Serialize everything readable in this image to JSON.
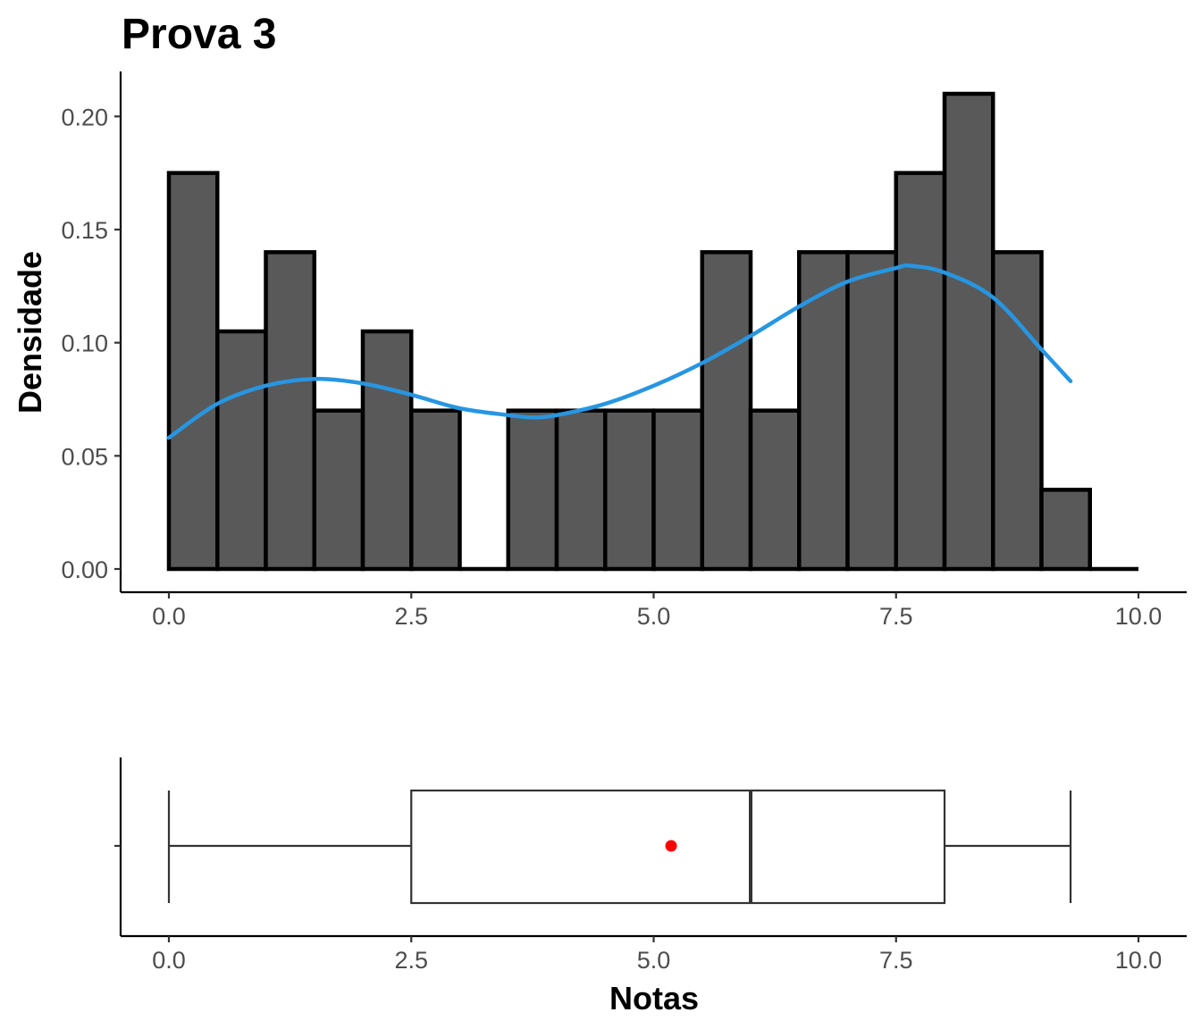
{
  "chart_data": [
    {
      "type": "bar",
      "subtype": "histogram-with-density",
      "title": "Prova 3",
      "xlabel": "",
      "ylabel": "Densidade",
      "xlim": [
        0,
        10
      ],
      "ylim": [
        0,
        0.21
      ],
      "x_ticks": [
        "0.0",
        "2.5",
        "5.0",
        "7.5",
        "10.0"
      ],
      "y_ticks": [
        "0.00",
        "0.05",
        "0.10",
        "0.15",
        "0.20"
      ],
      "bin_width": 0.5,
      "bins": [
        {
          "x0": 0.0,
          "x1": 0.5,
          "density": 0.175
        },
        {
          "x0": 0.5,
          "x1": 1.0,
          "density": 0.105
        },
        {
          "x0": 1.0,
          "x1": 1.5,
          "density": 0.14
        },
        {
          "x0": 1.5,
          "x1": 2.0,
          "density": 0.07
        },
        {
          "x0": 2.0,
          "x1": 2.5,
          "density": 0.105
        },
        {
          "x0": 2.5,
          "x1": 3.0,
          "density": 0.07
        },
        {
          "x0": 3.0,
          "x1": 3.5,
          "density": 0.0
        },
        {
          "x0": 3.5,
          "x1": 4.0,
          "density": 0.07
        },
        {
          "x0": 4.0,
          "x1": 4.5,
          "density": 0.07
        },
        {
          "x0": 4.5,
          "x1": 5.0,
          "density": 0.07
        },
        {
          "x0": 5.0,
          "x1": 5.5,
          "density": 0.07
        },
        {
          "x0": 5.5,
          "x1": 6.0,
          "density": 0.14
        },
        {
          "x0": 6.0,
          "x1": 6.5,
          "density": 0.07
        },
        {
          "x0": 6.5,
          "x1": 7.0,
          "density": 0.14
        },
        {
          "x0": 7.0,
          "x1": 7.5,
          "density": 0.14
        },
        {
          "x0": 7.5,
          "x1": 8.0,
          "density": 0.175
        },
        {
          "x0": 8.0,
          "x1": 8.5,
          "density": 0.21
        },
        {
          "x0": 8.5,
          "x1": 9.0,
          "density": 0.14
        },
        {
          "x0": 9.0,
          "x1": 9.5,
          "density": 0.035
        },
        {
          "x0": 9.5,
          "x1": 10.0,
          "density": 0.0
        }
      ],
      "density_curve": {
        "x": [
          0.0,
          0.5,
          1.0,
          1.5,
          2.0,
          2.5,
          3.0,
          3.5,
          3.75,
          4.0,
          4.5,
          5.0,
          5.5,
          6.0,
          6.5,
          7.0,
          7.5,
          7.65,
          8.0,
          8.5,
          9.0,
          9.3
        ],
        "y": [
          0.058,
          0.073,
          0.081,
          0.084,
          0.082,
          0.077,
          0.071,
          0.068,
          0.067,
          0.068,
          0.073,
          0.081,
          0.091,
          0.103,
          0.116,
          0.127,
          0.133,
          0.134,
          0.131,
          0.12,
          0.097,
          0.083
        ]
      },
      "bar_fill": "#595959",
      "bar_stroke": "#000000",
      "curve_color": "#2796e2"
    },
    {
      "type": "boxplot",
      "xlabel": "Notas",
      "ylabel": "",
      "xlim": [
        0,
        10
      ],
      "x_ticks": [
        "0.0",
        "2.5",
        "5.0",
        "7.5",
        "10.0"
      ],
      "whisker_low": 0.0,
      "q1": 2.5,
      "median": 6.0,
      "q3": 8.0,
      "whisker_high": 9.3,
      "mean": 5.18,
      "box_stroke": "#333333",
      "mean_color": "#ff0000"
    }
  ]
}
